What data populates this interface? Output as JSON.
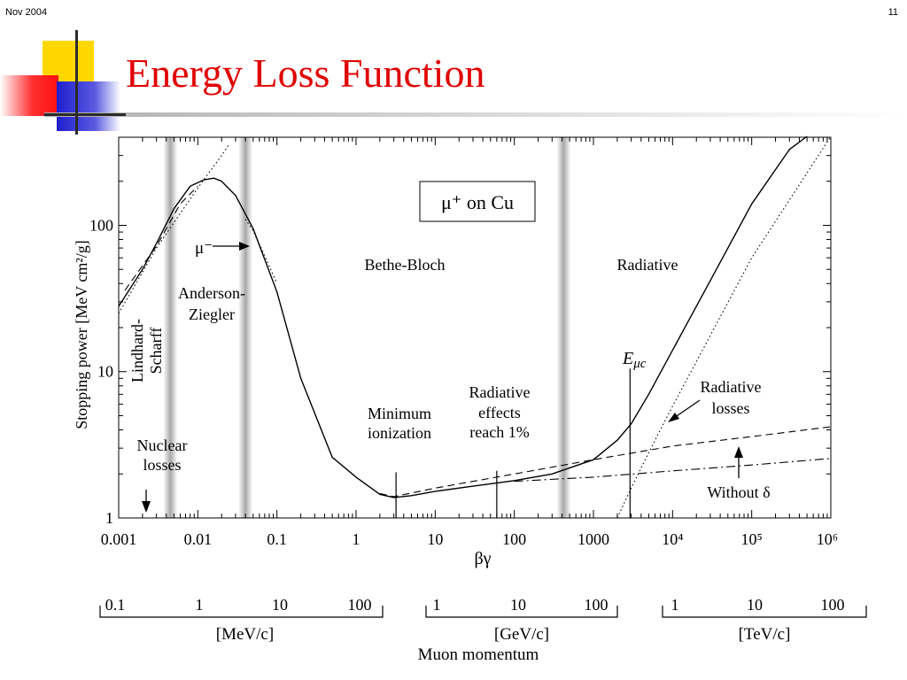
{
  "header": {
    "date": "Nov 2004",
    "page": "11"
  },
  "title": "Energy Loss Function",
  "colors": {
    "title": "#e00000",
    "square_yellow": "#ffd700",
    "square_red": "#ff2020",
    "square_blue": "#2b2bd6"
  },
  "chart_data": {
    "type": "line",
    "xscale": "log",
    "yscale": "log",
    "xlabel": "βγ",
    "ylabel": "Stopping power [MeV cm²/g]",
    "xlim": [
      0.001,
      1000000
    ],
    "ylim": [
      1,
      400
    ],
    "x_ticks": [
      "0.001",
      "0.01",
      "0.1",
      "1",
      "10",
      "100",
      "1000",
      "10⁴",
      "10⁵",
      "10⁶"
    ],
    "y_ticks": [
      "1",
      "10",
      "100"
    ],
    "legend_box": "μ⁺ on Cu",
    "grid": false,
    "series": [
      {
        "style": "solid",
        "points": [
          [
            0.001,
            28
          ],
          [
            0.002,
            50
          ],
          [
            0.003,
            75
          ],
          [
            0.005,
            130
          ],
          [
            0.008,
            185
          ],
          [
            0.012,
            205
          ],
          [
            0.016,
            210
          ],
          [
            0.02,
            200
          ],
          [
            0.03,
            160
          ],
          [
            0.05,
            95
          ],
          [
            0.1,
            35
          ],
          [
            0.2,
            9
          ],
          [
            0.5,
            2.6
          ],
          [
            1,
            1.9
          ],
          [
            2,
            1.45
          ],
          [
            3,
            1.38
          ],
          [
            5,
            1.42
          ],
          [
            10,
            1.52
          ],
          [
            30,
            1.65
          ],
          [
            100,
            1.8
          ],
          [
            300,
            2.0
          ],
          [
            1000,
            2.5
          ],
          [
            2000,
            3.4
          ],
          [
            3000,
            4.4
          ],
          [
            5000,
            7
          ],
          [
            10000,
            14
          ],
          [
            30000,
            42
          ],
          [
            100000,
            140
          ],
          [
            300000,
            330
          ],
          [
            500000,
            520
          ]
        ]
      },
      {
        "style": "dotted",
        "points": [
          [
            0.001,
            25
          ],
          [
            0.003,
            70
          ],
          [
            0.01,
            180
          ],
          [
            0.02,
            300
          ],
          [
            0.025,
            360
          ]
        ]
      },
      {
        "style": "dotted",
        "points": [
          [
            2000,
            1.0
          ],
          [
            3000,
            1.6
          ],
          [
            5000,
            2.8
          ],
          [
            10000,
            5.8
          ],
          [
            100000,
            60
          ],
          [
            1000000,
            620
          ]
        ]
      },
      {
        "style": "dotted",
        "points": [
          [
            0.04,
            110
          ],
          [
            0.05,
            92
          ],
          [
            0.07,
            62
          ],
          [
            0.1,
            40
          ]
        ]
      },
      {
        "style": "dashed",
        "points": [
          [
            0.0012,
            36
          ],
          [
            0.003,
            72
          ],
          [
            0.006,
            140
          ],
          [
            0.01,
            185
          ]
        ]
      },
      {
        "style": "dashed",
        "points": [
          [
            2,
            1.47
          ],
          [
            3,
            1.4
          ],
          [
            10,
            1.6
          ],
          [
            100,
            2.0
          ],
          [
            1000,
            2.5
          ],
          [
            10000,
            3.1
          ],
          [
            100000,
            3.6
          ],
          [
            1000000,
            4.2
          ]
        ]
      },
      {
        "style": "dash-dot",
        "points": [
          [
            100,
            1.78
          ],
          [
            1000,
            1.9
          ],
          [
            10000,
            2.1
          ],
          [
            100000,
            2.3
          ],
          [
            1000000,
            2.55
          ]
        ]
      }
    ],
    "bands_betagamma": [
      0.0045,
      0.04,
      420
    ],
    "markers": [
      {
        "x": 3.2,
        "label": "Minimum ionization",
        "y_top": 2.05
      },
      {
        "x": 60,
        "label": "Radiative effects reach 1%",
        "y_top": 2.1
      },
      {
        "x": 2900,
        "label": "Eμc",
        "y_top": 10.5
      }
    ],
    "annotations": {
      "anderson_ziegler": [
        "Anderson-",
        "Ziegler"
      ],
      "lindhard_scharff": [
        "Lindhard-",
        "Scharff"
      ],
      "bethe_bloch": "Bethe-Bloch",
      "radiative": "Radiative",
      "mu_minus": "μ⁻",
      "nuclear_losses": [
        "Nuclear",
        "losses"
      ],
      "minimum_ionization": [
        "Minimum",
        "ionization"
      ],
      "radiative_effects": [
        "Radiative",
        "effects",
        "reach 1%"
      ],
      "e_mu_c": "E",
      "e_mu_c_sub": "μc",
      "radiative_losses": [
        "Radiative",
        "losses"
      ],
      "without_delta": "Without δ"
    },
    "momentum_axis": {
      "title": "Muon momentum",
      "groups": [
        {
          "unit": "[MeV/c]",
          "ticks": [
            "0.1",
            "1",
            "10",
            "100"
          ]
        },
        {
          "unit": "[GeV/c]",
          "ticks": [
            "1",
            "10",
            "100"
          ]
        },
        {
          "unit": "[TeV/c]",
          "ticks": [
            "1",
            "10",
            "100"
          ]
        }
      ]
    }
  }
}
